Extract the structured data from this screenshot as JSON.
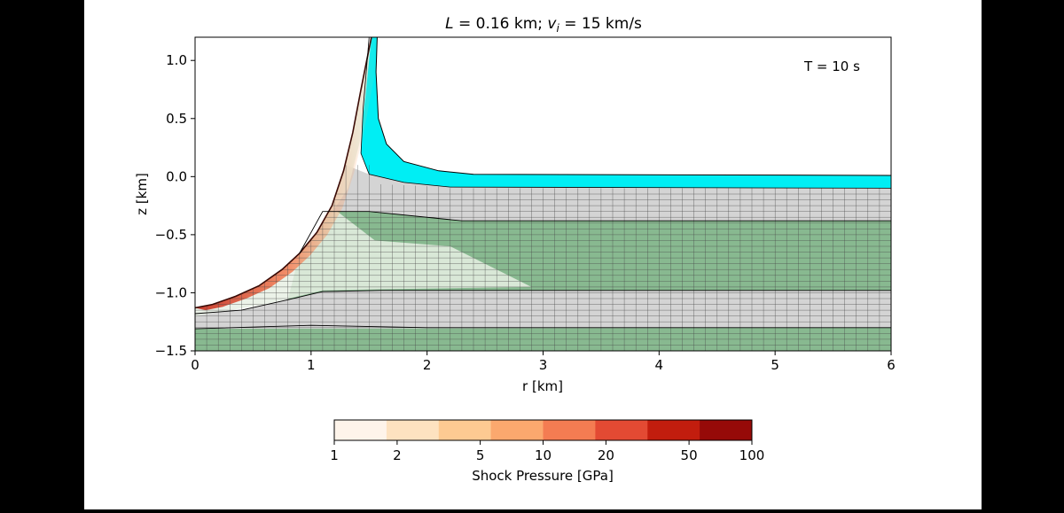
{
  "chart_data": {
    "type": "simulation-cross-section",
    "title_parts": {
      "L_symbol": "L",
      "L_value": " = 0.16 km; ",
      "v_symbol": "v",
      "v_subscript": "i",
      "v_value": " = 15 km/s"
    },
    "time_label": "T =  10 s",
    "xlabel": "r [km]",
    "ylabel": "z [km]",
    "xlim": [
      0,
      6
    ],
    "ylim": [
      -1.5,
      1.2
    ],
    "xticks": [
      {
        "v": 0,
        "label": "0"
      },
      {
        "v": 1,
        "label": "1"
      },
      {
        "v": 2,
        "label": "2"
      },
      {
        "v": 3,
        "label": "3"
      },
      {
        "v": 4,
        "label": "4"
      },
      {
        "v": 5,
        "label": "5"
      },
      {
        "v": 6,
        "label": "6"
      }
    ],
    "yticks": [
      {
        "v": 1.0,
        "label": "1.0"
      },
      {
        "v": 0.5,
        "label": "0.5"
      },
      {
        "v": 0.0,
        "label": "0.0"
      },
      {
        "v": -0.5,
        "label": "−0.5"
      },
      {
        "v": -1.0,
        "label": "−1.0"
      },
      {
        "v": -1.5,
        "label": "−1.5"
      }
    ],
    "layers": [
      {
        "name": "ocean-water",
        "color": "#00eef4"
      },
      {
        "name": "upper-sediment",
        "color": "#d4d4d4"
      },
      {
        "name": "middle-layer",
        "color": "#88b990"
      },
      {
        "name": "lower-sediment",
        "color": "#d4d4d4"
      },
      {
        "name": "basement",
        "color": "#88b990"
      }
    ],
    "colorbar": {
      "label": "Shock Pressure [GPa]",
      "range_gpa": [
        1,
        100
      ],
      "scale": "log",
      "colors": [
        "#fef4ea",
        "#fde2c0",
        "#fdca92",
        "#fba86e",
        "#f47c52",
        "#e34a33",
        "#c21d0e",
        "#960a08"
      ],
      "ticks": [
        {
          "v": 1,
          "label": "1"
        },
        {
          "v": 2,
          "label": "2"
        },
        {
          "v": 5,
          "label": "5"
        },
        {
          "v": 10,
          "label": "10"
        },
        {
          "v": 20,
          "label": "20"
        },
        {
          "v": 50,
          "label": "50"
        },
        {
          "v": 100,
          "label": "100"
        }
      ]
    }
  }
}
